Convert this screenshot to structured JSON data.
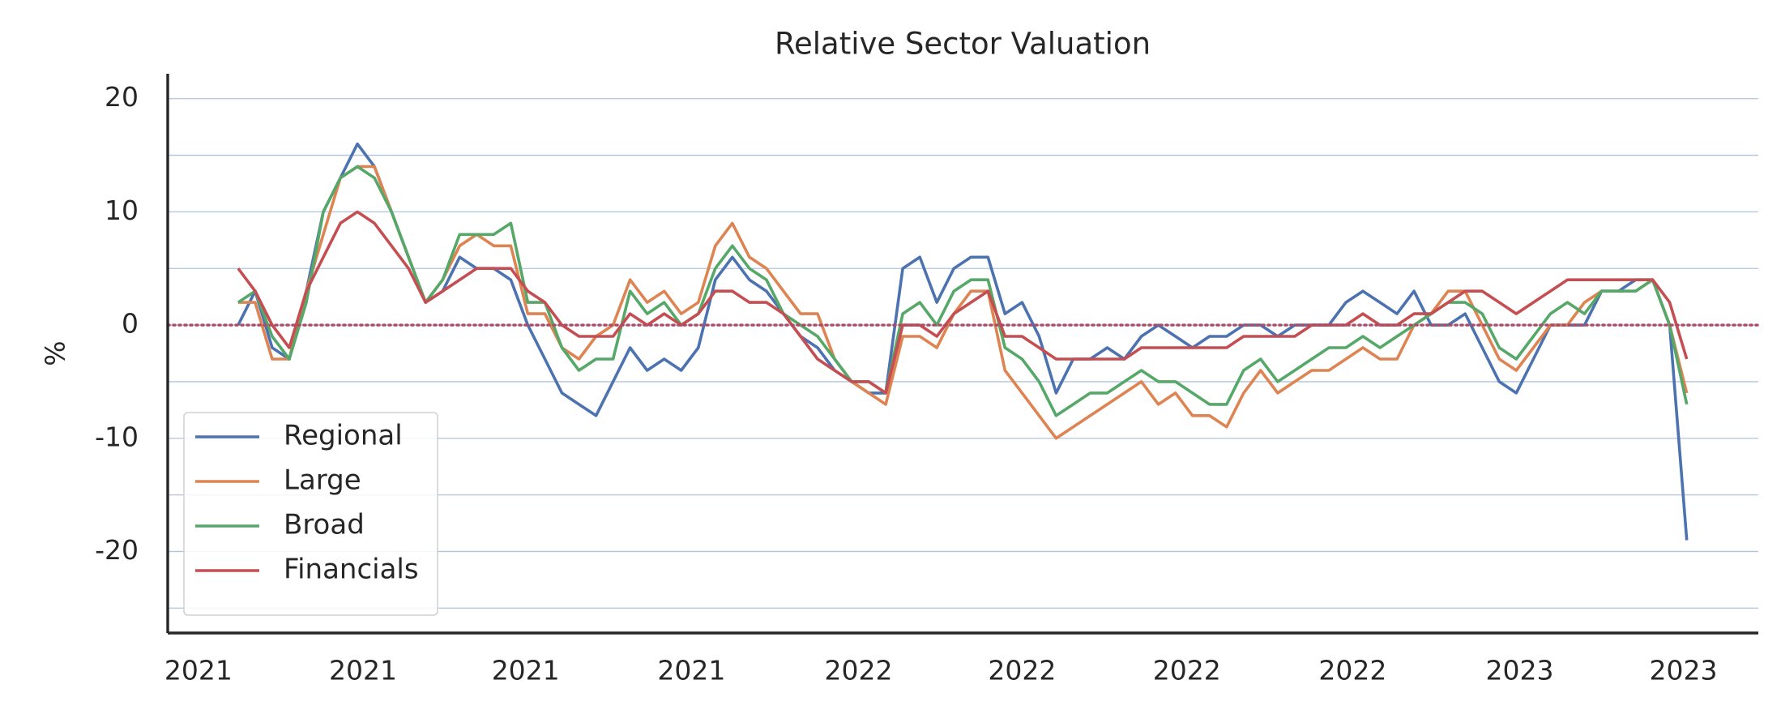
{
  "chart_data": {
    "type": "line",
    "title": "Relative Sector Valuation",
    "ylabel": "%",
    "xlim": [
      -4.13,
      89.2
    ],
    "xticks": [
      {
        "value": -2.33,
        "label": "2021"
      },
      {
        "value": 7.33,
        "label": "2021"
      },
      {
        "value": 16.87,
        "label": "2021"
      },
      {
        "value": 26.6,
        "label": "2021"
      },
      {
        "value": 36.4,
        "label": "2022"
      },
      {
        "value": 46,
        "label": "2022"
      },
      {
        "value": 55.67,
        "label": "2022"
      },
      {
        "value": 65.4,
        "label": "2022"
      },
      {
        "value": 75.2,
        "label": "2023"
      },
      {
        "value": 84.8,
        "label": "2023"
      }
    ],
    "ylim": [
      -27.2,
      22.2
    ],
    "yticks": [
      -20,
      -10,
      0,
      10,
      20
    ],
    "yminor_grid": [
      -25,
      -15,
      -5,
      5,
      15
    ],
    "grid": true,
    "legend": "lower left",
    "reference_line": {
      "value": 0,
      "color": "#b04a64"
    },
    "series": [
      {
        "name": "Regional",
        "color": "#4c72b0",
        "values": [
          0,
          3,
          -2,
          -3,
          3,
          10,
          13,
          16,
          14,
          10,
          6,
          2,
          3,
          6,
          5,
          5,
          4,
          0,
          -3,
          -6,
          -7,
          -8,
          -5,
          -2,
          -4,
          -3,
          -4,
          -2,
          4,
          6,
          4,
          3,
          1,
          -1,
          -2,
          -4,
          -5,
          -6,
          -6,
          5,
          6,
          2,
          5,
          6,
          6,
          1,
          2,
          -1,
          -6,
          -3,
          -3,
          -2,
          -3,
          -1,
          0,
          -1,
          -2,
          -1,
          -1,
          0,
          0,
          -1,
          0,
          0,
          0,
          2,
          3,
          2,
          1,
          3,
          0,
          0,
          1,
          -2,
          -5,
          -6,
          -3,
          0,
          0,
          0,
          3,
          3,
          4,
          4,
          0,
          -19
        ]
      },
      {
        "name": "Large",
        "color": "#dd8452",
        "values": [
          2,
          2,
          -3,
          -3,
          3,
          8,
          13,
          14,
          14,
          10,
          6,
          2,
          4,
          7,
          8,
          7,
          7,
          1,
          1,
          -2,
          -3,
          -1,
          0,
          4,
          2,
          3,
          1,
          2,
          7,
          9,
          6,
          5,
          3,
          1,
          1,
          -3,
          -5,
          -6,
          -7,
          -1,
          -1,
          -2,
          1,
          3,
          3,
          -4,
          -6,
          -8,
          -10,
          -9,
          -8,
          -7,
          -6,
          -5,
          -7,
          -6,
          -8,
          -8,
          -9,
          -6,
          -4,
          -6,
          -5,
          -4,
          -4,
          -3,
          -2,
          -3,
          -3,
          0,
          1,
          3,
          3,
          0,
          -3,
          -4,
          -2,
          0,
          0,
          2,
          3,
          3,
          3,
          4,
          0,
          -6
        ]
      },
      {
        "name": "Broad",
        "color": "#55a868",
        "values": [
          2,
          3,
          -1,
          -3,
          2,
          10,
          13,
          14,
          13,
          10,
          6,
          2,
          4,
          8,
          8,
          8,
          9,
          2,
          2,
          -2,
          -4,
          -3,
          -3,
          3,
          1,
          2,
          0,
          1,
          5,
          7,
          5,
          4,
          1,
          0,
          -1,
          -3,
          -5,
          -5,
          -6,
          1,
          2,
          0,
          3,
          4,
          4,
          -2,
          -3,
          -5,
          -8,
          -7,
          -6,
          -6,
          -5,
          -4,
          -5,
          -5,
          -6,
          -7,
          -7,
          -4,
          -3,
          -5,
          -4,
          -3,
          -2,
          -2,
          -1,
          -2,
          -1,
          0,
          1,
          2,
          2,
          1,
          -2,
          -3,
          -1,
          1,
          2,
          1,
          3,
          3,
          3,
          4,
          0,
          -7
        ]
      },
      {
        "name": "Financials",
        "color": "#c44e52",
        "values": [
          5,
          3,
          0,
          -2,
          3,
          6,
          9,
          10,
          9,
          7,
          5,
          2,
          3,
          4,
          5,
          5,
          5,
          3,
          2,
          0,
          -1,
          -1,
          -1,
          1,
          0,
          1,
          0,
          1,
          3,
          3,
          2,
          2,
          1,
          -1,
          -3,
          -4,
          -5,
          -5,
          -6,
          0,
          0,
          -1,
          1,
          2,
          3,
          -1,
          -1,
          -2,
          -3,
          -3,
          -3,
          -3,
          -3,
          -2,
          -2,
          -2,
          -2,
          -2,
          -2,
          -1,
          -1,
          -1,
          -1,
          0,
          0,
          0,
          1,
          0,
          0,
          1,
          1,
          2,
          3,
          3,
          2,
          1,
          2,
          3,
          4,
          4,
          4,
          4,
          4,
          4,
          2,
          -3
        ]
      }
    ]
  }
}
